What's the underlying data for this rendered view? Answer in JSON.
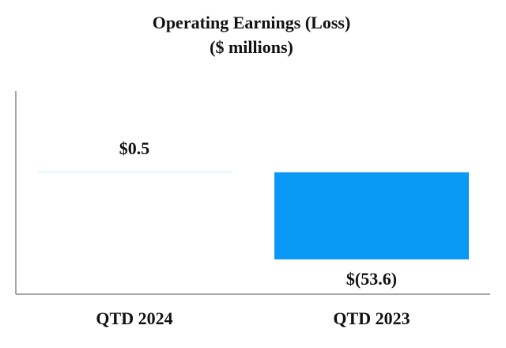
{
  "chart_data": {
    "type": "bar",
    "title": "Operating Earnings (Loss)",
    "subtitle": "($ millions)",
    "categories": [
      "QTD 2024",
      "QTD 2023"
    ],
    "values": [
      0.5,
      -53.6
    ],
    "value_labels": [
      "$0.5",
      "$(53.6)"
    ],
    "colors": [
      "#c9ecfa",
      "#0a9af5"
    ],
    "ylim": [
      -75,
      50
    ]
  }
}
